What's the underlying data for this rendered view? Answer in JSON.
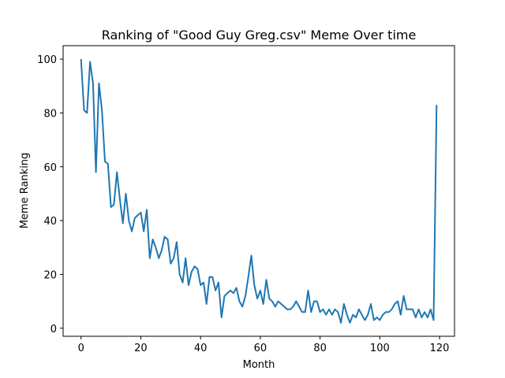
{
  "chart_data": {
    "type": "line",
    "title": "Ranking of \"Good Guy Greg.csv\" Meme Over time",
    "xlabel": "Month",
    "ylabel": "Meme Ranking",
    "xlim": [
      -6,
      125
    ],
    "ylim": [
      -3,
      105
    ],
    "xticks": [
      0,
      20,
      40,
      60,
      80,
      100,
      120
    ],
    "yticks": [
      0,
      20,
      40,
      60,
      80,
      100
    ],
    "grid": false,
    "legend": "none",
    "line_color": "#1f77b4",
    "series": [
      {
        "name": "",
        "x": [
          0,
          1,
          2,
          3,
          4,
          5,
          6,
          7,
          8,
          9,
          10,
          11,
          12,
          13,
          14,
          15,
          16,
          17,
          18,
          19,
          20,
          21,
          22,
          23,
          24,
          25,
          26,
          27,
          28,
          29,
          30,
          31,
          32,
          33,
          34,
          35,
          36,
          37,
          38,
          39,
          40,
          41,
          42,
          43,
          44,
          45,
          46,
          47,
          48,
          49,
          50,
          51,
          52,
          53,
          54,
          55,
          56,
          57,
          58,
          59,
          60,
          61,
          62,
          63,
          64,
          65,
          66,
          67,
          68,
          69,
          70,
          71,
          72,
          73,
          74,
          75,
          76,
          77,
          78,
          79,
          80,
          81,
          82,
          83,
          84,
          85,
          86,
          87,
          88,
          89,
          90,
          91,
          92,
          93,
          94,
          95,
          96,
          97,
          98,
          99,
          100,
          101,
          102,
          103,
          104,
          105,
          106,
          107,
          108,
          109,
          110,
          111,
          112,
          113,
          114,
          115,
          116,
          117,
          118,
          119
        ],
        "values": [
          100,
          81,
          80,
          99,
          91,
          58,
          91,
          81,
          62,
          61,
          45,
          46,
          58,
          48,
          39,
          50,
          40,
          36,
          41,
          42,
          43,
          36,
          44,
          26,
          33,
          30,
          26,
          29,
          34,
          33,
          24,
          26,
          32,
          20,
          17,
          26,
          16,
          21,
          23,
          22,
          16,
          17,
          9,
          19,
          19,
          14,
          17,
          4,
          12,
          13,
          14,
          13,
          15,
          10,
          8,
          12,
          19,
          27,
          16,
          11,
          14,
          9,
          18,
          11,
          10,
          8,
          10,
          9,
          8,
          7,
          7,
          8,
          10,
          8,
          6,
          6,
          14,
          6,
          10,
          10,
          6,
          7,
          5,
          7,
          5,
          7,
          6,
          2,
          9,
          5,
          2,
          5,
          4,
          7,
          5,
          3,
          5,
          9,
          3,
          4,
          3,
          5,
          6,
          6,
          7,
          9,
          10,
          5,
          12,
          7,
          7,
          7,
          4,
          7,
          4,
          6,
          4,
          7,
          3,
          83
        ]
      }
    ]
  }
}
